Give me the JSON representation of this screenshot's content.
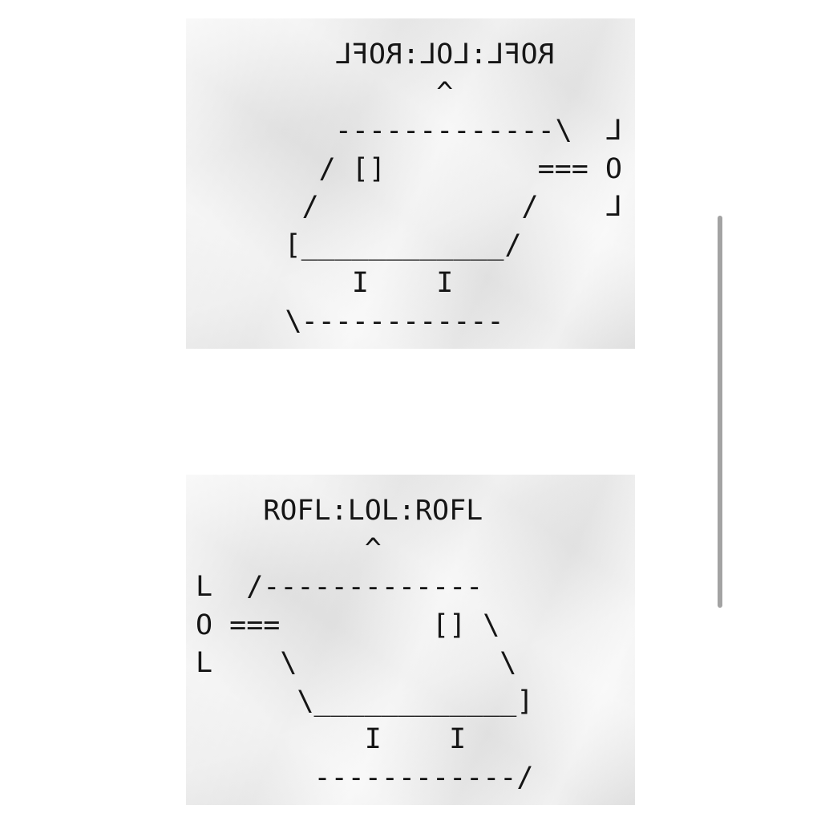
{
  "copies": {
    "mirrored": {
      "art": "    ROFL:LOL:ROFL\n          ^\nL  /-------------\nO ===         [] \\\nL    \\            \\\n      \\____________]\n          I    I\n       ------------/"
    },
    "normal": {
      "art": "    ROFL:LOL:ROFL\n          ^\nL  /-------------\nO ===         [] \\\nL    \\            \\\n      \\____________]\n          I    I\n       ------------/"
    }
  },
  "colors": {
    "paper": "#efefef",
    "ink": "#151515",
    "scrollbar": "#a3a3a3"
  }
}
